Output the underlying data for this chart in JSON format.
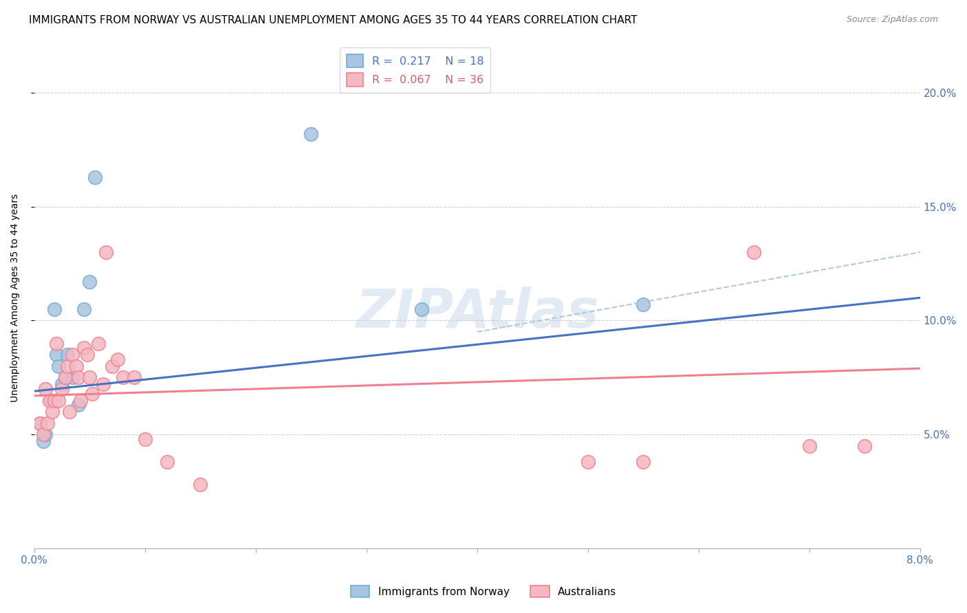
{
  "title": "IMMIGRANTS FROM NORWAY VS AUSTRALIAN UNEMPLOYMENT AMONG AGES 35 TO 44 YEARS CORRELATION CHART",
  "source": "Source: ZipAtlas.com",
  "ylabel": "Unemployment Among Ages 35 to 44 years",
  "ytick_labels": [
    "5.0%",
    "10.0%",
    "15.0%",
    "20.0%"
  ],
  "ytick_values": [
    5.0,
    10.0,
    15.0,
    20.0
  ],
  "xlim": [
    0.0,
    8.0
  ],
  "ylim": [
    0.0,
    22.0
  ],
  "legend_blue_R": "0.217",
  "legend_blue_N": "18",
  "legend_pink_R": "0.067",
  "legend_pink_N": "36",
  "watermark": "ZIPAtlas",
  "norway_color": "#a8c4e0",
  "norway_edge": "#6baed6",
  "australia_color": "#f4b8c1",
  "australia_edge": "#f08090",
  "norway_x": [
    0.05,
    0.08,
    0.1,
    0.15,
    0.18,
    0.2,
    0.22,
    0.25,
    0.28,
    0.3,
    0.35,
    0.4,
    0.45,
    0.5,
    0.55,
    2.5,
    3.5,
    5.5
  ],
  "norway_y": [
    5.5,
    4.7,
    5.0,
    6.5,
    10.5,
    8.5,
    8.0,
    7.2,
    7.5,
    8.5,
    7.5,
    6.3,
    10.5,
    11.7,
    16.3,
    18.2,
    10.5,
    10.7
  ],
  "australia_x": [
    0.05,
    0.08,
    0.1,
    0.12,
    0.14,
    0.16,
    0.18,
    0.2,
    0.22,
    0.25,
    0.28,
    0.3,
    0.32,
    0.34,
    0.38,
    0.4,
    0.42,
    0.45,
    0.48,
    0.5,
    0.52,
    0.58,
    0.62,
    0.65,
    0.7,
    0.75,
    0.8,
    0.9,
    1.0,
    1.2,
    1.5,
    5.0,
    5.5,
    6.5,
    7.0,
    7.5
  ],
  "australia_y": [
    5.5,
    5.0,
    7.0,
    5.5,
    6.5,
    6.0,
    6.5,
    9.0,
    6.5,
    7.0,
    7.5,
    8.0,
    6.0,
    8.5,
    8.0,
    7.5,
    6.5,
    8.8,
    8.5,
    7.5,
    6.8,
    9.0,
    7.2,
    13.0,
    8.0,
    8.3,
    7.5,
    7.5,
    4.8,
    3.8,
    2.8,
    3.8,
    3.8,
    13.0,
    4.5,
    4.5
  ],
  "blue_line_color": "#4472c4",
  "pink_line_color": "#f08090",
  "dashed_line_color": "#b0c8dc",
  "title_fontsize": 11,
  "axis_label_fontsize": 10,
  "tick_fontsize": 11,
  "source_fontsize": 9,
  "blue_line_x0": 0.0,
  "blue_line_y0": 6.9,
  "blue_line_x1": 8.0,
  "blue_line_y1": 11.0,
  "pink_line_x0": 0.0,
  "pink_line_y0": 6.7,
  "pink_line_x1": 8.0,
  "pink_line_y1": 7.9,
  "dashed_line_x0": 4.0,
  "dashed_line_y0": 9.5,
  "dashed_line_x1": 8.0,
  "dashed_line_y1": 13.0
}
